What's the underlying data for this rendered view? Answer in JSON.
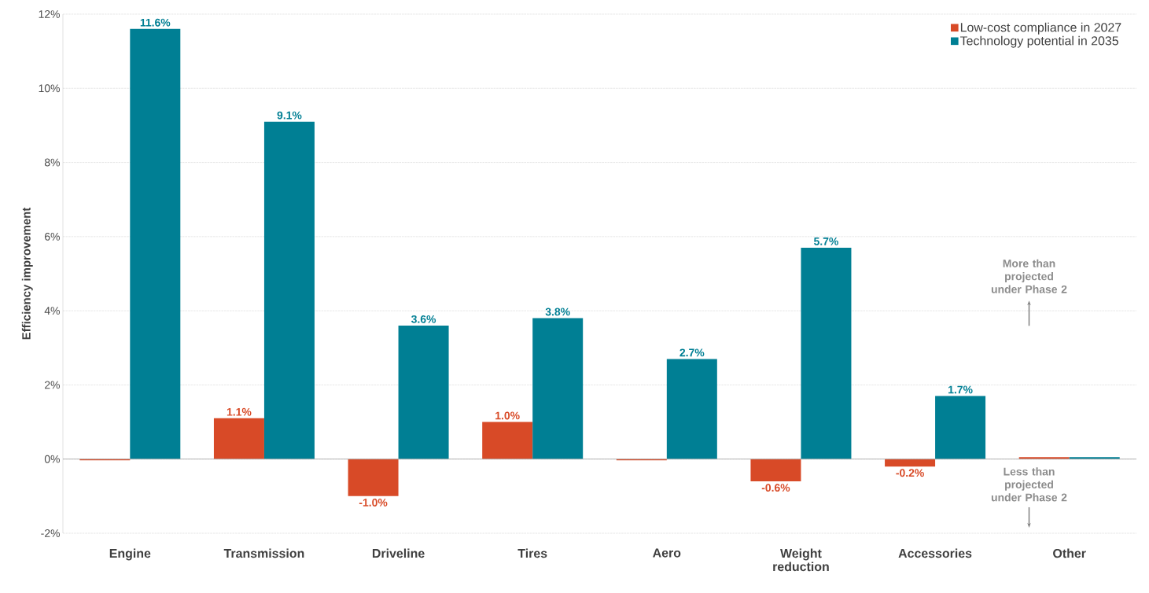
{
  "chart_data": {
    "type": "bar",
    "ylabel": "Efficiency improvement",
    "categories": [
      "Engine",
      "Transmission",
      "Driveline",
      "Tires",
      "Aero",
      "Weight reduction",
      "Accessories",
      "Other"
    ],
    "series": [
      {
        "name": "Low-cost compliance in 2027",
        "color": "#d84a27",
        "values": [
          -0.03,
          1.1,
          -1.0,
          1.0,
          -0.03,
          -0.6,
          -0.2,
          0.05
        ],
        "value_labels": [
          null,
          "1.1%",
          "-1.0%",
          "1.0%",
          null,
          "-0.6%",
          "-0.2%",
          null
        ]
      },
      {
        "name": "Technology potential in 2035",
        "color": "#007f94",
        "values": [
          11.6,
          9.1,
          3.6,
          3.8,
          2.7,
          5.7,
          1.7,
          0.05
        ],
        "value_labels": [
          "11.6%",
          "9.1%",
          "3.6%",
          "3.8%",
          "2.7%",
          "5.7%",
          "1.7%",
          null
        ]
      }
    ],
    "ylim": [
      -2,
      12
    ],
    "yticks": [
      {
        "value": -2,
        "label": "-2%"
      },
      {
        "value": 0,
        "label": "0%"
      },
      {
        "value": 2,
        "label": "2%"
      },
      {
        "value": 4,
        "label": "4%"
      },
      {
        "value": 6,
        "label": "6%"
      },
      {
        "value": 8,
        "label": "8%"
      },
      {
        "value": 10,
        "label": "10%"
      },
      {
        "value": 12,
        "label": "12%"
      }
    ],
    "grid": "y",
    "legend": "top right",
    "annotations": [
      "More than projected under Phase 2",
      "Less than projected under Phase 2"
    ]
  }
}
